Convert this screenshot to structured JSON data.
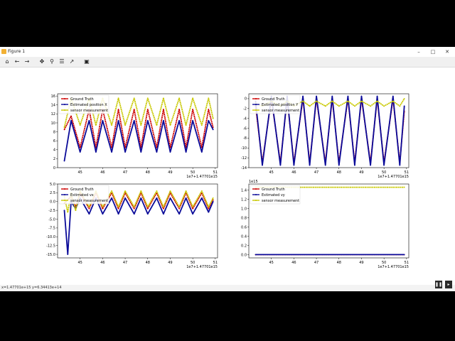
{
  "window": {
    "title": "Figure 1",
    "controls": {
      "minimize": "–",
      "maximize": "□",
      "close": "✕"
    }
  },
  "toolbar": {
    "items": [
      {
        "name": "home-icon",
        "glyph": "⌂"
      },
      {
        "name": "back-icon",
        "glyph": "←"
      },
      {
        "name": "forward-icon",
        "glyph": "→"
      },
      {
        "name": "pan-icon",
        "glyph": "✥"
      },
      {
        "name": "zoom-icon",
        "glyph": "⚲"
      },
      {
        "name": "configure-subplots-icon",
        "glyph": "☰"
      },
      {
        "name": "edit-axis-icon",
        "glyph": "↗"
      },
      {
        "name": "save-icon",
        "glyph": "▣"
      }
    ]
  },
  "status": {
    "text": "x=1.47701e+15  y=6.34413e+14"
  },
  "media_controls": {
    "pause": "❚❚",
    "next": "▸"
  },
  "colors": {
    "ground_truth": "#cc0000",
    "estimated": "#0a0a99",
    "sensor": "#c8c800"
  },
  "chart_data": [
    {
      "type": "line",
      "panel": "top-left",
      "x": [
        44.3,
        44.6,
        45.0,
        45.4,
        45.7,
        46.0,
        46.4,
        46.7,
        47.0,
        47.4,
        47.7,
        48.0,
        48.4,
        48.7,
        49.0,
        49.4,
        49.7,
        50.0,
        50.4,
        50.7,
        50.9
      ],
      "series": [
        {
          "name": "Ground Truth",
          "values": [
            8.5,
            11.5,
            4.5,
            13.0,
            4.5,
            13.0,
            4.5,
            13.0,
            4.5,
            13.0,
            4.5,
            13.0,
            4.5,
            13.0,
            4.5,
            13.0,
            4.5,
            13.0,
            4.5,
            13.0,
            9.0
          ]
        },
        {
          "name": "Estimated position X",
          "values": [
            1.5,
            10.5,
            3.5,
            10.5,
            3.5,
            10.5,
            3.5,
            10.5,
            3.5,
            10.5,
            3.5,
            10.5,
            3.5,
            10.5,
            3.5,
            10.5,
            3.5,
            10.5,
            3.5,
            10.5,
            8.5
          ]
        },
        {
          "name": "sensor measurement",
          "values": [
            9.0,
            15.5,
            9.5,
            15.5,
            9.5,
            15.5,
            9.5,
            15.5,
            9.5,
            15.5,
            9.5,
            15.5,
            9.5,
            15.5,
            9.5,
            15.5,
            9.5,
            15.5,
            9.5,
            15.5,
            11.0
          ]
        }
      ],
      "xticks": [
        "45",
        "46",
        "47",
        "48",
        "49",
        "50",
        "51"
      ],
      "yticks": [
        "0",
        "2",
        "4",
        "6",
        "8",
        "10",
        "12",
        "14",
        "16"
      ],
      "xlim": [
        44.0,
        51.1
      ],
      "ylim": [
        0,
        16.5
      ],
      "offset_label": "1e7+1.47701e15",
      "legend": "upper-left"
    },
    {
      "type": "line",
      "panel": "top-right",
      "x": [
        44.3,
        44.6,
        45.0,
        45.4,
        45.7,
        46.0,
        46.4,
        46.7,
        47.0,
        47.4,
        47.7,
        48.0,
        48.4,
        48.7,
        49.0,
        49.4,
        49.7,
        50.0,
        50.4,
        50.7,
        50.9
      ],
      "series": [
        {
          "name": "Ground Truth",
          "values": [
            -1.5,
            -13.0,
            0.0,
            -13.0,
            0.0,
            -13.0,
            0.0,
            -13.0,
            0.0,
            -13.0,
            0.0,
            -13.0,
            0.0,
            -13.0,
            0.0,
            -13.0,
            0.0,
            -13.0,
            0.0,
            -13.0,
            -2.5
          ]
        },
        {
          "name": "Estimated position Y",
          "values": [
            -0.5,
            -13.5,
            0.5,
            -13.5,
            0.5,
            -13.5,
            0.5,
            -13.5,
            0.5,
            -13.5,
            0.5,
            -13.5,
            0.5,
            -13.5,
            0.5,
            -13.5,
            0.5,
            -13.5,
            0.5,
            -13.5,
            -1.5
          ]
        },
        {
          "name": "sensor measurement",
          "values": [
            -1.0,
            -1.5,
            -0.5,
            -1.5,
            -0.5,
            -1.5,
            -0.5,
            -1.5,
            -0.5,
            -1.5,
            -0.5,
            -1.5,
            -0.5,
            -1.5,
            -0.5,
            -1.5,
            -0.5,
            -1.5,
            -0.5,
            -1.5,
            0.0
          ]
        }
      ],
      "xticks": [
        "45",
        "46",
        "47",
        "48",
        "49",
        "50",
        "51"
      ],
      "yticks": [
        "-14",
        "-12",
        "-10",
        "-8",
        "-6",
        "-4",
        "-2",
        "0"
      ],
      "xlim": [
        44.0,
        51.1
      ],
      "ylim": [
        -14,
        1
      ],
      "offset_label": "1e7+1.47701e15",
      "legend": "upper-left"
    },
    {
      "type": "line",
      "panel": "bottom-left",
      "x": [
        44.3,
        44.45,
        44.6,
        44.8,
        45.0,
        45.4,
        45.7,
        46.0,
        46.4,
        46.7,
        47.0,
        47.4,
        47.7,
        48.0,
        48.4,
        48.7,
        49.0,
        49.4,
        49.7,
        50.0,
        50.4,
        50.7,
        50.9
      ],
      "series": [
        {
          "name": "Ground Truth",
          "values": [
            -0.5,
            0.5,
            1.5,
            -1.5,
            2.5,
            -2.0,
            2.5,
            -2.0,
            2.5,
            -2.0,
            2.5,
            -2.0,
            2.5,
            -2.0,
            2.5,
            -2.0,
            2.5,
            -2.0,
            2.5,
            -2.0,
            2.5,
            -2.0,
            0.5
          ]
        },
        {
          "name": "Estimated vx",
          "values": [
            -2.5,
            -15.0,
            0.0,
            -2.0,
            1.0,
            -3.5,
            1.0,
            -3.5,
            1.0,
            -3.5,
            1.0,
            -3.5,
            1.0,
            -3.5,
            1.0,
            -3.5,
            1.0,
            -3.5,
            1.0,
            -3.5,
            1.0,
            -3.0,
            0.0
          ]
        },
        {
          "name": "sensor measurement",
          "values": [
            1.5,
            -3.0,
            2.5,
            -2.5,
            3.0,
            -1.5,
            3.0,
            -1.5,
            3.0,
            -1.5,
            3.0,
            -1.5,
            3.0,
            -1.5,
            3.0,
            -1.5,
            3.0,
            -1.5,
            3.0,
            -1.5,
            3.0,
            -1.5,
            1.0
          ]
        }
      ],
      "xticks": [
        "45",
        "46",
        "47",
        "48",
        "49",
        "50",
        "51"
      ],
      "yticks": [
        "-15.0",
        "-12.5",
        "-10.0",
        "-7.5",
        "-5.0",
        "-2.5",
        "0.0",
        "2.5",
        "5.0"
      ],
      "xlim": [
        44.0,
        51.1
      ],
      "ylim": [
        -16,
        5
      ],
      "offset_label": "1e7+1.47701e15",
      "legend": "upper-left"
    },
    {
      "type": "line",
      "panel": "bottom-right",
      "x": [
        44.3,
        50.9
      ],
      "series": [
        {
          "name": "Ground Truth",
          "values": [
            0.0,
            0.0
          ]
        },
        {
          "name": "Estimated vy",
          "values": [
            0.0,
            0.0
          ]
        },
        {
          "name": "sensor measurement",
          "values": [
            1.46,
            1.46
          ]
        }
      ],
      "xticks": [
        "45",
        "46",
        "47",
        "48",
        "49",
        "50",
        "51"
      ],
      "yticks": [
        "0.0",
        "0.2",
        "0.4",
        "0.6",
        "0.8",
        "1.0",
        "1.2",
        "1.4"
      ],
      "xlim": [
        44.0,
        51.1
      ],
      "ylim": [
        -0.07,
        1.53
      ],
      "offset_label": "1e7+1.47701e15",
      "y_exponent_label": "1e15",
      "legend": "upper-left"
    }
  ]
}
